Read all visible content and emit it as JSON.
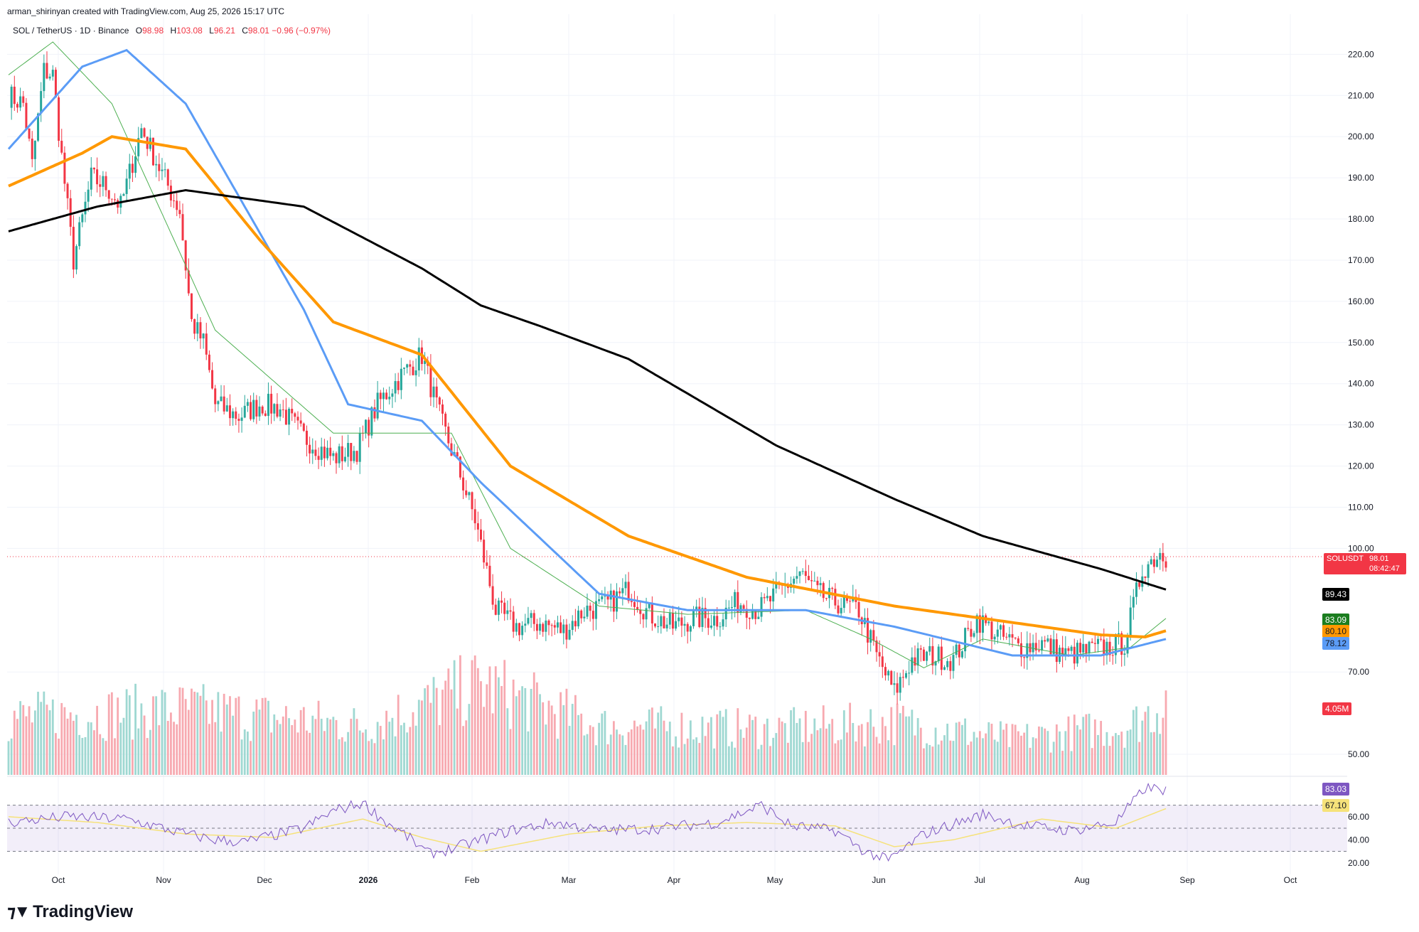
{
  "header": {
    "created_by": "arman_shirinyan created with TradingView.com, Aug 25, 2026 15:17 UTC"
  },
  "symbol": {
    "pair": "SOL / TetherUS · 1D · Binance",
    "o_label": "O",
    "o_value": "98.98",
    "h_label": "H",
    "h_value": "103.08",
    "l_label": "L",
    "l_value": "96.21",
    "c_label": "C",
    "c_value": "98.01",
    "change": "−0.96 (−0.97%)"
  },
  "price_tags": {
    "ticker": "SOLUSDT",
    "last": "98.01",
    "countdown": "08:42:47",
    "ma_black": "89.43",
    "ma_green": "83.09",
    "ma_orange": "80.10",
    "ma_blue": "78.12",
    "volume": "4.05M",
    "rsi": "83.03",
    "rsi_ma": "67.10"
  },
  "colors": {
    "up": "#26a69a",
    "down": "#f23645",
    "ma_black": "#000000",
    "ma_orange": "#ff9800",
    "ma_blue": "#5b9cf6",
    "ma_green": "#4caf50",
    "rsi": "#7e57c2",
    "rsi_ma": "#f6e27a"
  },
  "brand": {
    "name": "TradingView"
  },
  "chart_data": {
    "type": "candlestick",
    "y_ticks": [
      "220.00",
      "210.00",
      "200.00",
      "190.00",
      "180.00",
      "170.00",
      "160.00",
      "150.00",
      "140.00",
      "130.00",
      "120.00",
      "110.00",
      "100.00",
      "70.00",
      "50.00"
    ],
    "rsi_ticks": [
      "60.00",
      "40.00",
      "20.00"
    ],
    "x_ticks": [
      "Oct",
      "Nov",
      "Dec",
      "2026",
      "Feb",
      "Mar",
      "Apr",
      "May",
      "Jun",
      "Jul",
      "Aug",
      "Sep",
      "Oct"
    ],
    "ylim": [
      45,
      228
    ],
    "rsi_lim": [
      10,
      95
    ],
    "rsi_bands": [
      70,
      30
    ],
    "price_anchors": [
      [
        0,
        210
      ],
      [
        5,
        208
      ],
      [
        8,
        193
      ],
      [
        12,
        216
      ],
      [
        15,
        215
      ],
      [
        18,
        195
      ],
      [
        22,
        170
      ],
      [
        28,
        190
      ],
      [
        33,
        188
      ],
      [
        38,
        183
      ],
      [
        45,
        202
      ],
      [
        52,
        191
      ],
      [
        58,
        182
      ],
      [
        62,
        155
      ],
      [
        66,
        150
      ],
      [
        70,
        135
      ],
      [
        78,
        132
      ],
      [
        85,
        135
      ],
      [
        92,
        134
      ],
      [
        100,
        127
      ],
      [
        110,
        122
      ],
      [
        118,
        124
      ],
      [
        125,
        135
      ],
      [
        133,
        142
      ],
      [
        140,
        147
      ],
      [
        146,
        132
      ],
      [
        152,
        120
      ],
      [
        158,
        107
      ],
      [
        165,
        85
      ],
      [
        172,
        81
      ],
      [
        180,
        82
      ],
      [
        188,
        80
      ],
      [
        195,
        85
      ],
      [
        202,
        86
      ],
      [
        210,
        90
      ],
      [
        217,
        84
      ],
      [
        225,
        81
      ],
      [
        232,
        83
      ],
      [
        240,
        83
      ],
      [
        247,
        87
      ],
      [
        254,
        85
      ],
      [
        262,
        90
      ],
      [
        268,
        94
      ],
      [
        274,
        89
      ],
      [
        280,
        87
      ],
      [
        288,
        85
      ],
      [
        294,
        74
      ],
      [
        300,
        65
      ],
      [
        306,
        73
      ],
      [
        312,
        74
      ],
      [
        320,
        73
      ],
      [
        328,
        83
      ],
      [
        335,
        79
      ],
      [
        343,
        76
      ],
      [
        350,
        77
      ],
      [
        358,
        74
      ],
      [
        365,
        75
      ],
      [
        372,
        76
      ],
      [
        378,
        77
      ],
      [
        384,
        95
      ],
      [
        390,
        99
      ],
      [
        392,
        98
      ]
    ],
    "ma_black_anchors": [
      [
        0,
        177
      ],
      [
        30,
        183
      ],
      [
        60,
        187
      ],
      [
        100,
        183
      ],
      [
        140,
        168
      ],
      [
        160,
        159
      ],
      [
        180,
        154
      ],
      [
        210,
        146
      ],
      [
        260,
        125
      ],
      [
        300,
        112
      ],
      [
        330,
        103
      ],
      [
        370,
        95
      ],
      [
        392,
        90
      ]
    ],
    "ma_orange_anchors": [
      [
        0,
        188
      ],
      [
        25,
        196
      ],
      [
        35,
        200
      ],
      [
        60,
        197
      ],
      [
        85,
        175
      ],
      [
        110,
        155
      ],
      [
        140,
        147
      ],
      [
        170,
        120
      ],
      [
        210,
        103
      ],
      [
        250,
        93
      ],
      [
        300,
        86
      ],
      [
        330,
        83
      ],
      [
        370,
        79
      ],
      [
        385,
        78.5
      ],
      [
        392,
        80
      ]
    ],
    "ma_blue_anchors": [
      [
        0,
        197
      ],
      [
        25,
        217
      ],
      [
        40,
        221
      ],
      [
        60,
        208
      ],
      [
        100,
        158
      ],
      [
        115,
        135
      ],
      [
        140,
        131
      ],
      [
        160,
        116
      ],
      [
        200,
        89
      ],
      [
        230,
        85
      ],
      [
        270,
        85
      ],
      [
        300,
        81
      ],
      [
        340,
        74
      ],
      [
        370,
        74
      ],
      [
        392,
        78
      ]
    ],
    "ma_green_anchors": [
      [
        0,
        215
      ],
      [
        15,
        223
      ],
      [
        35,
        208
      ],
      [
        70,
        153
      ],
      [
        110,
        128
      ],
      [
        150,
        128
      ],
      [
        170,
        100
      ],
      [
        200,
        86
      ],
      [
        230,
        84
      ],
      [
        270,
        85
      ],
      [
        292,
        78
      ],
      [
        310,
        71
      ],
      [
        330,
        78
      ],
      [
        360,
        74
      ],
      [
        380,
        76
      ],
      [
        392,
        83
      ]
    ],
    "rsi_anchors": [
      [
        0,
        55
      ],
      [
        20,
        60
      ],
      [
        40,
        58
      ],
      [
        60,
        45
      ],
      [
        70,
        40
      ],
      [
        80,
        38
      ],
      [
        100,
        50
      ],
      [
        110,
        65
      ],
      [
        120,
        72
      ],
      [
        128,
        55
      ],
      [
        135,
        43
      ],
      [
        142,
        28
      ],
      [
        150,
        32
      ],
      [
        170,
        48
      ],
      [
        185,
        55
      ],
      [
        200,
        48
      ],
      [
        220,
        50
      ],
      [
        240,
        55
      ],
      [
        255,
        70
      ],
      [
        265,
        52
      ],
      [
        280,
        48
      ],
      [
        290,
        30
      ],
      [
        298,
        22
      ],
      [
        310,
        45
      ],
      [
        330,
        62
      ],
      [
        345,
        52
      ],
      [
        360,
        48
      ],
      [
        375,
        55
      ],
      [
        385,
        85
      ],
      [
        392,
        83
      ]
    ],
    "rsi_ma_anchors": [
      [
        0,
        60
      ],
      [
        30,
        55
      ],
      [
        60,
        45
      ],
      [
        90,
        42
      ],
      [
        120,
        58
      ],
      [
        140,
        42
      ],
      [
        160,
        30
      ],
      [
        190,
        45
      ],
      [
        220,
        52
      ],
      [
        250,
        55
      ],
      [
        280,
        52
      ],
      [
        300,
        34
      ],
      [
        320,
        40
      ],
      [
        350,
        58
      ],
      [
        375,
        50
      ],
      [
        392,
        67
      ]
    ],
    "volume_anchors": [
      [
        0,
        0.35
      ],
      [
        60,
        0.4
      ],
      [
        120,
        0.3
      ],
      [
        160,
        0.55
      ],
      [
        200,
        0.3
      ],
      [
        260,
        0.28
      ],
      [
        300,
        0.32
      ],
      [
        340,
        0.22
      ],
      [
        380,
        0.3
      ],
      [
        392,
        0.45
      ]
    ]
  }
}
